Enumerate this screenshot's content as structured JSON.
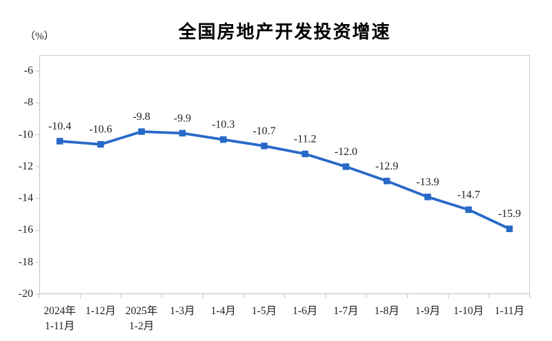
{
  "chart_style": {
    "line_color": "#2869C8",
    "marker_color": "#2869C8",
    "axis_color": "#C2C2C2",
    "border_color": "#CDCDCD",
    "text_color": "#1F1F1F",
    "title_color": "#000000",
    "background": "#FFFFFF"
  },
  "chart_data": {
    "type": "line",
    "title": "全国房地产开发投资增速",
    "ylabel": "（%）",
    "xlabel": "",
    "categories": [
      "2024年\n1-11月",
      "1-12月",
      "2025年\n1-2月",
      "1-3月",
      "1-4月",
      "1-5月",
      "1-6月",
      "1-7月",
      "1-8月",
      "1-9月",
      "1-10月",
      "1-11月"
    ],
    "values": [
      -10.4,
      -10.6,
      -9.8,
      -9.9,
      -10.3,
      -10.7,
      -11.2,
      -12.0,
      -12.9,
      -13.9,
      -14.7,
      -15.9
    ],
    "data_labels": [
      "-10.4",
      "-10.6",
      "-9.8",
      "-9.9",
      "-10.3",
      "-10.7",
      "-11.2",
      "-12.0",
      "-12.9",
      "-13.9",
      "-14.7",
      "-15.9"
    ],
    "y_ticks": [
      -6,
      -8,
      -10,
      -12,
      -14,
      -16,
      -18,
      -20
    ],
    "ylim": [
      -20,
      -5
    ],
    "grid": false,
    "legend": false,
    "legend_position": "none",
    "marker": "square",
    "data_labels_shown": true,
    "data_label_position": "above"
  }
}
